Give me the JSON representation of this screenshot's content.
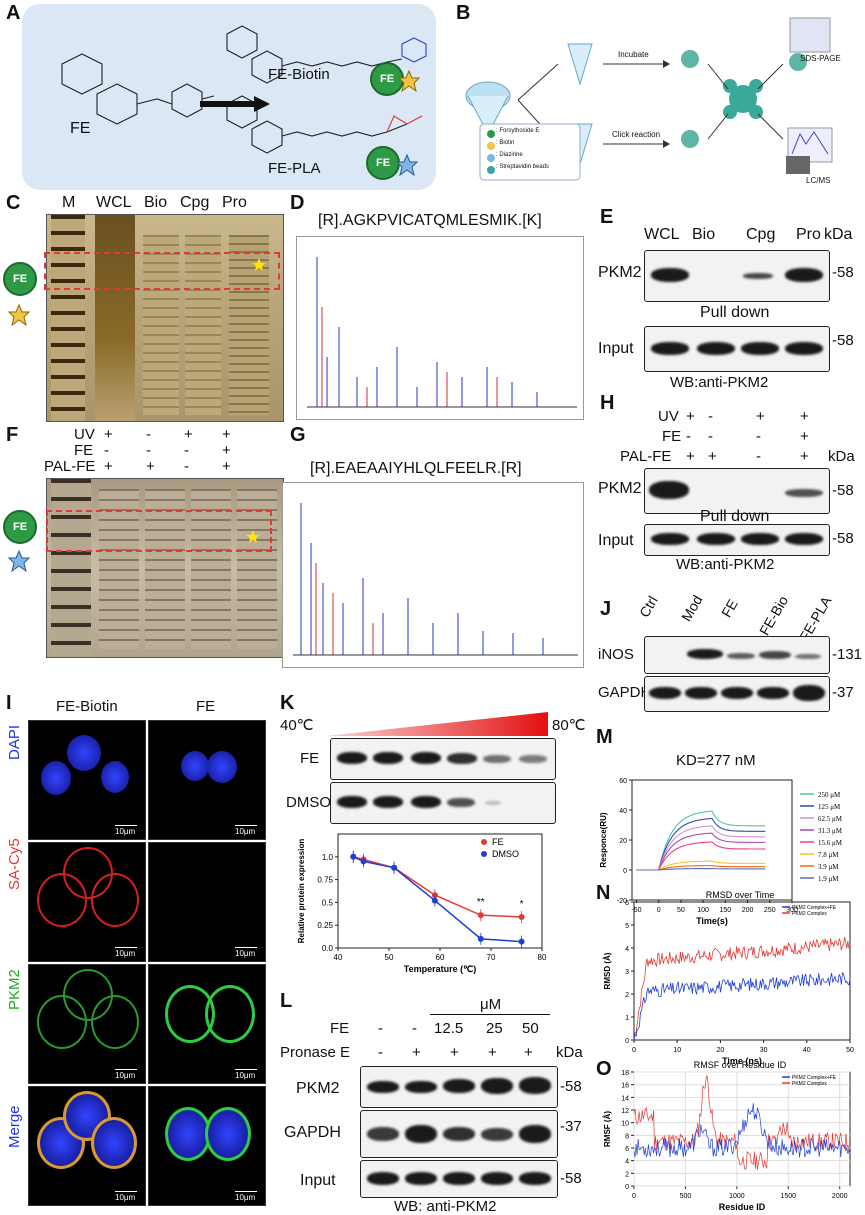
{
  "panels": {
    "A": {
      "letter": "A",
      "fe": "FE",
      "fe_biotin": "FE-Biotin",
      "fe_pla": "FE-PLA",
      "badge": "FE"
    },
    "B": {
      "letter": "B",
      "incubate": "Incubate",
      "click": "Click reaction",
      "sds": "SDS-PAGE",
      "lcms": "LC/MS",
      "legend": [
        ": Forsythoside E",
        ": Biotin",
        ": Diazirine",
        ": Streptavidin beads"
      ]
    },
    "C": {
      "letter": "C",
      "lanes": [
        "M",
        "WCL",
        "Bio",
        "Cpg",
        "Pro"
      ],
      "badge": "FE"
    },
    "D": {
      "letter": "D",
      "peptide": "[R].AGKPVICATQMLESMIK.[K]"
    },
    "E": {
      "letter": "E",
      "lanes": [
        "WCL",
        "Bio",
        "Cpg",
        "Pro"
      ],
      "kda": "kDa",
      "row1": "PKM2",
      "mw1": "-58",
      "mid": "Pull down",
      "row2": "Input",
      "mw2": "-58",
      "wb": "WB:anti-PKM2"
    },
    "F": {
      "letter": "F",
      "rows": [
        {
          "label": "UV",
          "vals": [
            "+",
            "-",
            "+",
            "+"
          ]
        },
        {
          "label": "FE",
          "vals": [
            "-",
            "-",
            "-",
            "+"
          ]
        },
        {
          "label": "PAL-FE",
          "vals": [
            "+",
            "+",
            "-",
            "+"
          ]
        }
      ],
      "badge": "FE"
    },
    "G": {
      "letter": "G",
      "peptide": "[R].EAEAAIYHLQLFEELR.[R]"
    },
    "H": {
      "letter": "H",
      "rows": [
        {
          "label": "UV",
          "vals": [
            "+",
            "-",
            "+",
            "+"
          ]
        },
        {
          "label": "FE",
          "vals": [
            "-",
            "-",
            "-",
            "+"
          ]
        },
        {
          "label": "PAL-FE",
          "vals": [
            "+",
            "+",
            "-",
            "+"
          ]
        }
      ],
      "kda": "kDa",
      "row1": "PKM2",
      "mw1": "-58",
      "mid": "Pull down",
      "row2": "Input",
      "mw2": "-58",
      "wb": "WB:anti-PKM2"
    },
    "J": {
      "letter": "J",
      "lanes": [
        "Ctrl",
        "Mod",
        "FE",
        "FE-Bio",
        "FE-PLA"
      ],
      "row1": "iNOS",
      "mw1": "-131",
      "row2": "GAPDH",
      "mw2": "-37"
    },
    "I": {
      "letter": "I",
      "cols": [
        "FE-Biotin",
        "FE"
      ],
      "rows": [
        "DAPI",
        "SA-Cy5",
        "PKM2",
        "Merge"
      ],
      "scale": "10μm"
    },
    "K": {
      "letter": "K",
      "t_low": "40℃",
      "t_high": "80℃",
      "row1": "FE",
      "row2": "DMSO",
      "chart_data": {
        "type": "line",
        "xlabel": "Temperature (℃)",
        "ylabel": "Relative protein expression",
        "xlim": [
          40,
          80
        ],
        "ylim": [
          0,
          1.25
        ],
        "xticks": [
          40,
          50,
          60,
          70,
          80
        ],
        "yticks": [
          0,
          0.25,
          0.5,
          0.75,
          1.0
        ],
        "yticklabels": [
          "0.0",
          "0.25",
          "0.5",
          "0.75",
          "1.0"
        ],
        "x": [
          43,
          45,
          51,
          59,
          68,
          76
        ],
        "series": [
          {
            "name": "FE",
            "color": "#e53935",
            "values": [
              1.0,
              0.97,
              0.88,
              0.58,
              0.36,
              0.34
            ]
          },
          {
            "name": "DMSO",
            "color": "#1e3fd8",
            "values": [
              1.0,
              0.95,
              0.88,
              0.52,
              0.1,
              0.07
            ]
          }
        ],
        "annotations": [
          "**",
          "*"
        ]
      }
    },
    "L": {
      "letter": "L",
      "unit": "μM",
      "fe_label": "FE",
      "fe_vals": [
        "-",
        "-",
        "12.5",
        "25",
        "50"
      ],
      "pr_label": "Pronase E",
      "pr_vals": [
        "-",
        "+",
        "+",
        "+",
        "+"
      ],
      "kda": "kDa",
      "row1": "PKM2",
      "mw1": "-58",
      "row2": "GAPDH",
      "mw2": "-37",
      "row3": "Input",
      "mw3": "-58",
      "wb": "WB: anti-PKM2"
    },
    "M": {
      "letter": "M",
      "kd": "KD=277 nM",
      "chart_data": {
        "type": "line",
        "xlabel": "Time(s)",
        "ylabel": "Responce(RU)",
        "xlim": [
          -60,
          300
        ],
        "ylim": [
          -20,
          60
        ],
        "xticks": [
          -50,
          0,
          50,
          100,
          150,
          200,
          250,
          300
        ],
        "yticks": [
          -20,
          0,
          20,
          40,
          60
        ],
        "series": [
          {
            "name": "250 μM",
            "color": "#48c9b0",
            "peak": 40
          },
          {
            "name": "125 μM",
            "color": "#3949ab",
            "peak": 35
          },
          {
            "name": "62.5 μM",
            "color": "#ce93d8",
            "peak": 30
          },
          {
            "name": "31.3 μM",
            "color": "#ab47bc",
            "peak": 25
          },
          {
            "name": "15.6 μM",
            "color": "#ec407a",
            "peak": 19
          },
          {
            "name": "7.8 μM",
            "color": "#fbc02d",
            "peak": 6
          },
          {
            "name": "3.9 μM",
            "color": "#ef6c00",
            "peak": 3
          },
          {
            "name": "1.9 μM",
            "color": "#5c6bc0",
            "peak": 1
          }
        ]
      }
    },
    "N": {
      "letter": "N",
      "title": "RMSD over Time",
      "chart_data": {
        "type": "line",
        "xlabel": "Time (ns)",
        "ylabel": "RMSD (Å)",
        "xlim": [
          0,
          50
        ],
        "ylim": [
          0,
          6
        ],
        "xticks": [
          0,
          10,
          20,
          30,
          40,
          50
        ],
        "yticks": [
          0,
          1,
          2,
          3,
          4,
          5,
          6
        ],
        "series": [
          {
            "name": "PKM2 Complex+FE",
            "color": "#1e3fd8"
          },
          {
            "name": "PKM2 Complex",
            "color": "#e53935"
          }
        ]
      }
    },
    "O": {
      "letter": "O",
      "title": "RMSF over Residue ID",
      "chart_data": {
        "type": "line",
        "xlabel": "Residue ID",
        "ylabel": "RMSF (Å)",
        "xlim": [
          0,
          2100
        ],
        "ylim": [
          0,
          18
        ],
        "xticks": [
          0,
          500,
          1000,
          1500,
          2000
        ],
        "yticks": [
          0,
          2,
          4,
          6,
          8,
          10,
          12,
          14,
          16,
          18
        ],
        "series": [
          {
            "name": "PKM2 Complex+FE",
            "color": "#1e3fd8"
          },
          {
            "name": "PKM2 Complex",
            "color": "#e53935"
          }
        ]
      }
    }
  }
}
